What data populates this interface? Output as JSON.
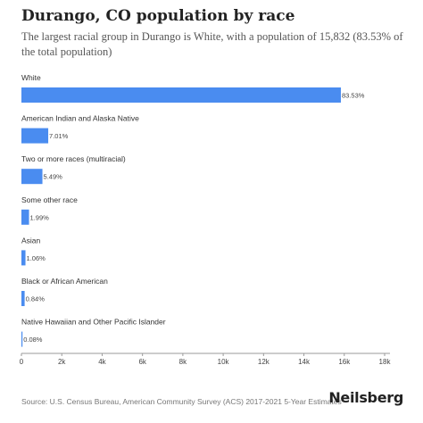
{
  "header": {
    "title": "Durango, CO population by race",
    "subtitle": "The largest racial group in Durango is White, with a population of 15,832 (83.53% of the total population)"
  },
  "footer": {
    "source": "Source: U.S. Census Bureau, American Community Survey (ACS) 2017-2021 5-Year Estimates",
    "brand": "Neilsberg"
  },
  "chart_data": {
    "type": "bar",
    "orientation": "horizontal",
    "title": "Durango, CO population by race",
    "categories": [
      "White",
      "American Indian and Alaska Native",
      "Two or more races (multiracial)",
      "Some other race",
      "Asian",
      "Black or African American",
      "Native Hawaiian and Other Pacific Islander"
    ],
    "values": [
      15832,
      1329,
      1041,
      377,
      201,
      159,
      15
    ],
    "data_labels": [
      "83.53%",
      "7.01%",
      "5.49%",
      "1.99%",
      "1.06%",
      "0.84%",
      "0.08%"
    ],
    "x_ticks": [
      "0",
      "2k",
      "4k",
      "6k",
      "8k",
      "10k",
      "12k",
      "14k",
      "16k",
      "18k"
    ],
    "xlim": [
      0,
      18000
    ],
    "grid": false,
    "bar_color": "#4a8cf0"
  }
}
